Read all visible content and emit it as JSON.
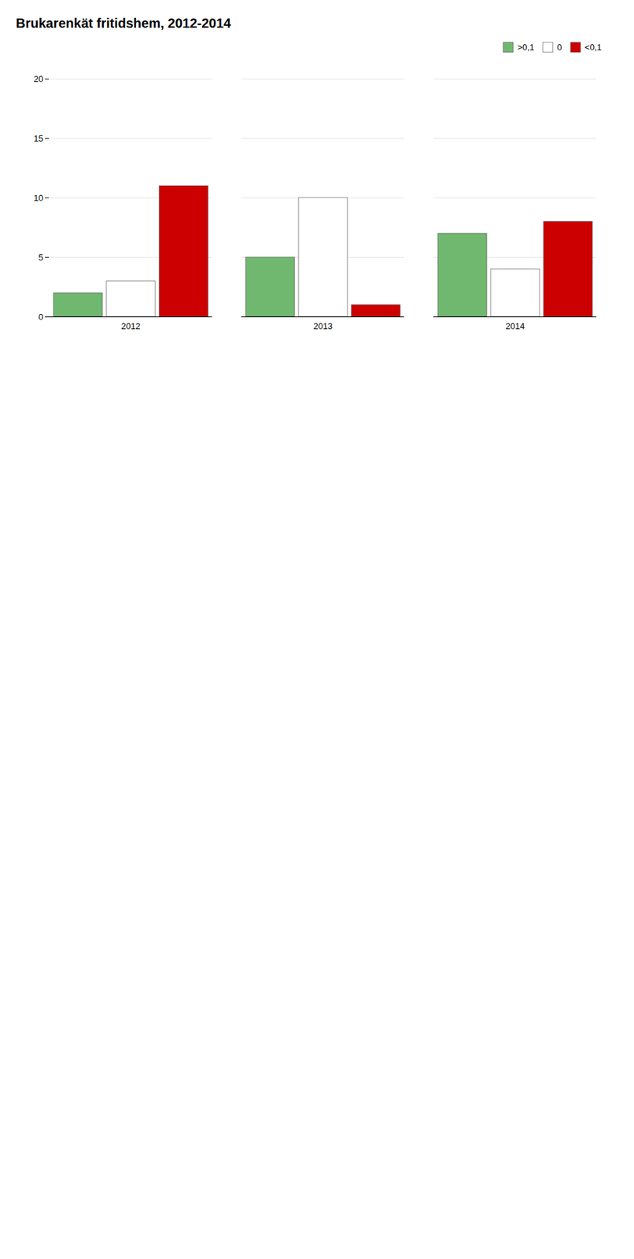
{
  "chart_data": {
    "type": "bar",
    "title": "Brukarenkät fritidshem, 2012-2014",
    "categories": [
      "2012",
      "2013",
      "2014"
    ],
    "series": [
      {
        "name": ">0,1",
        "color": "#70B870",
        "values": [
          2,
          5,
          7
        ]
      },
      {
        "name": "0",
        "color": "#FFFFFF",
        "values": [
          3,
          10,
          4
        ]
      },
      {
        "name": "<0,1",
        "color": "#CC0000",
        "values": [
          11,
          1,
          8
        ]
      }
    ],
    "ylim": [
      0,
      20
    ],
    "yticks": [
      0,
      5,
      10,
      15,
      20
    ],
    "grid": true,
    "legend": "upper right"
  }
}
